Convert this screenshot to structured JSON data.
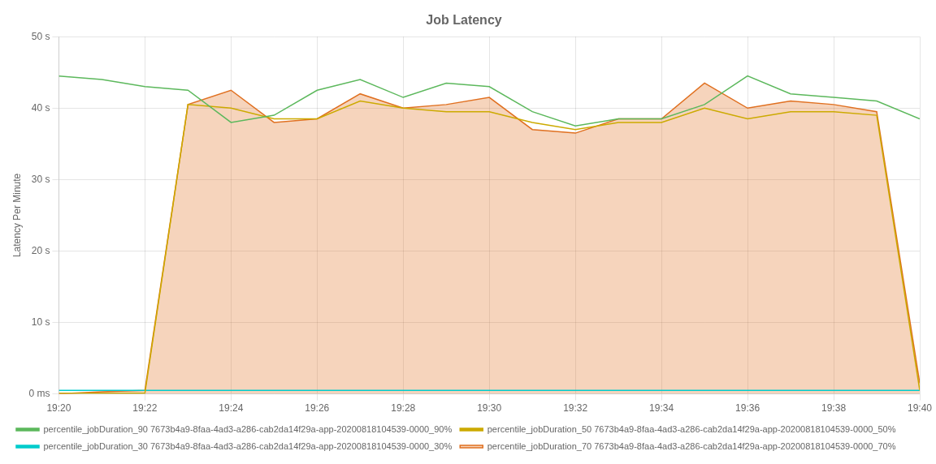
{
  "chart_data": {
    "type": "line",
    "title": "Job Latency",
    "ylabel": "Latency Per Minute",
    "x": [
      0,
      1,
      2,
      3,
      4,
      5,
      6,
      7,
      8,
      9,
      10,
      11,
      12,
      13,
      14,
      15,
      16,
      17,
      18,
      19,
      20
    ],
    "xlim": [
      0,
      20
    ],
    "xticks": [
      {
        "value": 0,
        "label": "19:20"
      },
      {
        "value": 2,
        "label": "19:22"
      },
      {
        "value": 4,
        "label": "19:24"
      },
      {
        "value": 6,
        "label": "19:26"
      },
      {
        "value": 8,
        "label": "19:28"
      },
      {
        "value": 10,
        "label": "19:30"
      },
      {
        "value": 12,
        "label": "19:32"
      },
      {
        "value": 14,
        "label": "19:34"
      },
      {
        "value": 16,
        "label": "19:36"
      },
      {
        "value": 18,
        "label": "19:38"
      },
      {
        "value": 20,
        "label": "19:40"
      }
    ],
    "ylim": [
      0,
      50
    ],
    "yticks": [
      {
        "value": 0,
        "label": "0 ms"
      },
      {
        "value": 10,
        "label": "10 s"
      },
      {
        "value": 20,
        "label": "20 s"
      },
      {
        "value": 30,
        "label": "30 s"
      },
      {
        "value": 40,
        "label": "40 s"
      },
      {
        "value": 50,
        "label": "50 s"
      }
    ],
    "grid": true,
    "legend": "bottom",
    "series": [
      {
        "name": "percentile_jobDuration_90 7673b4a9-8faa-4ad3-a286-cab2da14f29a-app-20200818104539-0000_90%",
        "color": "#5cb85c",
        "values": [
          44.5,
          44.0,
          43.0,
          42.5,
          38.0,
          39.0,
          42.5,
          44.0,
          41.5,
          43.5,
          43.0,
          39.5,
          37.5,
          38.5,
          38.5,
          40.5,
          44.5,
          42.0,
          41.5,
          41.0,
          38.5
        ]
      },
      {
        "name": "percentile_jobDuration_50 7673b4a9-8faa-4ad3-a286-cab2da14f29a-app-20200818104539-0000_50%",
        "color": "#ccaa00",
        "values": [
          0.1,
          0.1,
          0.1,
          40.5,
          40.0,
          38.5,
          38.5,
          41.0,
          40.0,
          39.5,
          39.5,
          38.0,
          37.0,
          38.0,
          38.0,
          40.0,
          38.5,
          39.5,
          39.5,
          39.0,
          0.5
        ]
      },
      {
        "name": "percentile_jobDuration_30 7673b4a9-8faa-4ad3-a286-cab2da14f29a-app-20200818104539-0000_30%",
        "color": "#00cccc",
        "values": [
          0.5,
          0.5,
          0.5,
          0.5,
          0.5,
          0.5,
          0.5,
          0.5,
          0.5,
          0.5,
          0.5,
          0.5,
          0.5,
          0.5,
          0.5,
          0.5,
          0.5,
          0.5,
          0.5,
          0.5,
          0.5
        ]
      },
      {
        "name": "percentile_jobDuration_70 7673b4a9-8faa-4ad3-a286-cab2da14f29a-app-20200818104539-0000_70%",
        "color": "#e07020",
        "type": "area",
        "values": [
          0.0,
          0.3,
          0.5,
          40.5,
          42.5,
          38.0,
          38.5,
          42.0,
          40.0,
          40.5,
          41.5,
          37.0,
          36.5,
          38.5,
          38.5,
          43.5,
          40.0,
          41.0,
          40.5,
          39.5,
          1.5
        ]
      }
    ]
  }
}
